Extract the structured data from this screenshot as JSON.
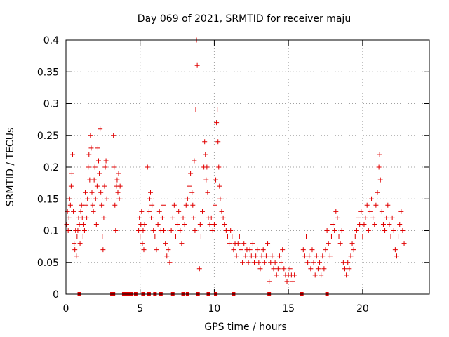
{
  "chart_data": {
    "type": "scatter",
    "title": "Day 069 of 2021, SRMTID for receiver maju",
    "xlabel": "GPS time / hours",
    "ylabel": "SRMTID / TECUs",
    "xlim": [
      0,
      24.5
    ],
    "ylim": [
      0,
      0.4
    ],
    "xticks": [
      0,
      5,
      10,
      15,
      20
    ],
    "xtick_labels": [
      "0",
      "5",
      "10",
      "15",
      "20"
    ],
    "yticks": [
      0,
      0.05,
      0.1,
      0.15,
      0.2,
      0.25,
      0.3,
      0.35,
      0.4
    ],
    "ytick_labels": [
      "0",
      "0.05",
      "0.1",
      "0.15",
      "0.2",
      "0.25",
      "0.3",
      "0.35",
      "0.4"
    ],
    "grid": true,
    "marker": "+",
    "series_color": "#e00000",
    "gap_markers_x": [
      0.9,
      3.1,
      3.2,
      3.9,
      4.1,
      4.2,
      4.4,
      4.7,
      5.2,
      5.6,
      6.0,
      6.4,
      7.2,
      7.9,
      8.2,
      8.9,
      9.6,
      10.1,
      11.3,
      13.7,
      15.9,
      17.6
    ],
    "points": [
      [
        0.05,
        0.11
      ],
      [
        0.1,
        0.13
      ],
      [
        0.15,
        0.1
      ],
      [
        0.2,
        0.12
      ],
      [
        0.25,
        0.15
      ],
      [
        0.3,
        0.14
      ],
      [
        0.35,
        0.17
      ],
      [
        0.4,
        0.19
      ],
      [
        0.45,
        0.22
      ],
      [
        0.5,
        0.13
      ],
      [
        0.55,
        0.08
      ],
      [
        0.6,
        0.07
      ],
      [
        0.65,
        0.1
      ],
      [
        0.7,
        0.06
      ],
      [
        0.75,
        0.09
      ],
      [
        0.8,
        0.1
      ],
      [
        0.85,
        0.12
      ],
      [
        0.9,
        0.11
      ],
      [
        0.95,
        0.08
      ],
      [
        1.0,
        0.13
      ],
      [
        1.05,
        0.14
      ],
      [
        1.1,
        0.12
      ],
      [
        1.15,
        0.09
      ],
      [
        1.2,
        0.11
      ],
      [
        1.25,
        0.1
      ],
      [
        1.3,
        0.16
      ],
      [
        1.35,
        0.14
      ],
      [
        1.4,
        0.12
      ],
      [
        1.45,
        0.15
      ],
      [
        1.5,
        0.2
      ],
      [
        1.55,
        0.22
      ],
      [
        1.6,
        0.18
      ],
      [
        1.65,
        0.25
      ],
      [
        1.7,
        0.23
      ],
      [
        1.75,
        0.16
      ],
      [
        1.8,
        0.14
      ],
      [
        1.85,
        0.13
      ],
      [
        1.9,
        0.18
      ],
      [
        1.95,
        0.2
      ],
      [
        2.0,
        0.15
      ],
      [
        2.05,
        0.11
      ],
      [
        2.1,
        0.17
      ],
      [
        2.15,
        0.23
      ],
      [
        2.2,
        0.21
      ],
      [
        2.25,
        0.19
      ],
      [
        2.3,
        0.26
      ],
      [
        2.35,
        0.16
      ],
      [
        2.4,
        0.14
      ],
      [
        2.45,
        0.09
      ],
      [
        2.5,
        0.07
      ],
      [
        2.55,
        0.12
      ],
      [
        2.6,
        0.17
      ],
      [
        2.65,
        0.2
      ],
      [
        2.7,
        0.21
      ],
      [
        2.75,
        0.15
      ],
      [
        3.2,
        0.25
      ],
      [
        3.25,
        0.2
      ],
      [
        3.3,
        0.14
      ],
      [
        3.35,
        0.1
      ],
      [
        3.4,
        0.17
      ],
      [
        3.45,
        0.18
      ],
      [
        3.5,
        0.16
      ],
      [
        3.55,
        0.19
      ],
      [
        3.6,
        0.15
      ],
      [
        3.65,
        0.17
      ],
      [
        4.9,
        0.1
      ],
      [
        4.95,
        0.12
      ],
      [
        5.0,
        0.09
      ],
      [
        5.05,
        0.11
      ],
      [
        5.1,
        0.13
      ],
      [
        5.15,
        0.08
      ],
      [
        5.2,
        0.1
      ],
      [
        5.25,
        0.07
      ],
      [
        5.3,
        0.11
      ],
      [
        5.5,
        0.2
      ],
      [
        5.6,
        0.13
      ],
      [
        5.65,
        0.15
      ],
      [
        5.7,
        0.16
      ],
      [
        5.75,
        0.12
      ],
      [
        5.8,
        0.14
      ],
      [
        5.9,
        0.1
      ],
      [
        6.0,
        0.09
      ],
      [
        6.1,
        0.07
      ],
      [
        6.2,
        0.11
      ],
      [
        6.3,
        0.13
      ],
      [
        6.4,
        0.1
      ],
      [
        6.5,
        0.12
      ],
      [
        6.55,
        0.14
      ],
      [
        6.6,
        0.1
      ],
      [
        6.7,
        0.08
      ],
      [
        6.8,
        0.06
      ],
      [
        6.9,
        0.07
      ],
      [
        7.0,
        0.05
      ],
      [
        7.1,
        0.1
      ],
      [
        7.2,
        0.12
      ],
      [
        7.3,
        0.14
      ],
      [
        7.4,
        0.09
      ],
      [
        7.5,
        0.11
      ],
      [
        7.6,
        0.13
      ],
      [
        7.7,
        0.1
      ],
      [
        7.8,
        0.08
      ],
      [
        7.9,
        0.12
      ],
      [
        8.0,
        0.11
      ],
      [
        8.1,
        0.14
      ],
      [
        8.2,
        0.15
      ],
      [
        8.3,
        0.17
      ],
      [
        8.4,
        0.19
      ],
      [
        8.5,
        0.16
      ],
      [
        8.55,
        0.14
      ],
      [
        8.6,
        0.12
      ],
      [
        8.65,
        0.21
      ],
      [
        8.7,
        0.1
      ],
      [
        8.75,
        0.29
      ],
      [
        8.8,
        0.4
      ],
      [
        8.85,
        0.36
      ],
      [
        9.0,
        0.04
      ],
      [
        9.05,
        0.11
      ],
      [
        9.1,
        0.09
      ],
      [
        9.2,
        0.13
      ],
      [
        9.3,
        0.2
      ],
      [
        9.35,
        0.24
      ],
      [
        9.4,
        0.22
      ],
      [
        9.45,
        0.18
      ],
      [
        9.5,
        0.2
      ],
      [
        9.55,
        0.16
      ],
      [
        9.6,
        0.12
      ],
      [
        9.7,
        0.11
      ],
      [
        9.8,
        0.12
      ],
      [
        9.9,
        0.1
      ],
      [
        10.0,
        0.11
      ],
      [
        10.05,
        0.14
      ],
      [
        10.1,
        0.18
      ],
      [
        10.15,
        0.27
      ],
      [
        10.2,
        0.29
      ],
      [
        10.25,
        0.24
      ],
      [
        10.3,
        0.2
      ],
      [
        10.35,
        0.17
      ],
      [
        10.4,
        0.15
      ],
      [
        10.5,
        0.13
      ],
      [
        10.6,
        0.12
      ],
      [
        10.7,
        0.11
      ],
      [
        10.8,
        0.1
      ],
      [
        10.9,
        0.09
      ],
      [
        11.0,
        0.08
      ],
      [
        11.1,
        0.1
      ],
      [
        11.2,
        0.09
      ],
      [
        11.3,
        0.07
      ],
      [
        11.4,
        0.08
      ],
      [
        11.5,
        0.06
      ],
      [
        11.6,
        0.08
      ],
      [
        11.7,
        0.09
      ],
      [
        11.8,
        0.07
      ],
      [
        11.9,
        0.05
      ],
      [
        12.0,
        0.08
      ],
      [
        12.1,
        0.06
      ],
      [
        12.2,
        0.07
      ],
      [
        12.3,
        0.05
      ],
      [
        12.4,
        0.07
      ],
      [
        12.5,
        0.06
      ],
      [
        12.6,
        0.08
      ],
      [
        12.7,
        0.05
      ],
      [
        12.8,
        0.06
      ],
      [
        12.9,
        0.07
      ],
      [
        13.0,
        0.05
      ],
      [
        13.1,
        0.04
      ],
      [
        13.2,
        0.06
      ],
      [
        13.3,
        0.07
      ],
      [
        13.4,
        0.05
      ],
      [
        13.5,
        0.06
      ],
      [
        13.6,
        0.08
      ],
      [
        13.7,
        0.02
      ],
      [
        13.8,
        0.05
      ],
      [
        13.9,
        0.06
      ],
      [
        14.0,
        0.04
      ],
      [
        14.1,
        0.05
      ],
      [
        14.2,
        0.03
      ],
      [
        14.3,
        0.04
      ],
      [
        14.4,
        0.06
      ],
      [
        14.5,
        0.05
      ],
      [
        14.6,
        0.07
      ],
      [
        14.7,
        0.04
      ],
      [
        14.8,
        0.03
      ],
      [
        14.9,
        0.02
      ],
      [
        15.0,
        0.03
      ],
      [
        15.1,
        0.04
      ],
      [
        15.2,
        0.03
      ],
      [
        15.3,
        0.02
      ],
      [
        15.4,
        0.03
      ],
      [
        16.0,
        0.07
      ],
      [
        16.1,
        0.06
      ],
      [
        16.2,
        0.09
      ],
      [
        16.3,
        0.05
      ],
      [
        16.4,
        0.06
      ],
      [
        16.5,
        0.04
      ],
      [
        16.6,
        0.07
      ],
      [
        16.7,
        0.05
      ],
      [
        16.8,
        0.03
      ],
      [
        16.9,
        0.06
      ],
      [
        17.0,
        0.04
      ],
      [
        17.1,
        0.05
      ],
      [
        17.2,
        0.03
      ],
      [
        17.3,
        0.06
      ],
      [
        17.4,
        0.04
      ],
      [
        17.5,
        0.07
      ],
      [
        17.6,
        0.1
      ],
      [
        17.7,
        0.08
      ],
      [
        17.8,
        0.06
      ],
      [
        17.9,
        0.09
      ],
      [
        18.0,
        0.11
      ],
      [
        18.1,
        0.1
      ],
      [
        18.2,
        0.13
      ],
      [
        18.3,
        0.12
      ],
      [
        18.4,
        0.09
      ],
      [
        18.5,
        0.08
      ],
      [
        18.6,
        0.1
      ],
      [
        18.7,
        0.05
      ],
      [
        18.8,
        0.04
      ],
      [
        18.9,
        0.03
      ],
      [
        19.0,
        0.05
      ],
      [
        19.1,
        0.04
      ],
      [
        19.2,
        0.06
      ],
      [
        19.3,
        0.08
      ],
      [
        19.4,
        0.07
      ],
      [
        19.5,
        0.09
      ],
      [
        19.6,
        0.1
      ],
      [
        19.7,
        0.12
      ],
      [
        19.8,
        0.11
      ],
      [
        19.9,
        0.13
      ],
      [
        20.0,
        0.09
      ],
      [
        20.1,
        0.11
      ],
      [
        20.2,
        0.12
      ],
      [
        20.3,
        0.14
      ],
      [
        20.4,
        0.1
      ],
      [
        20.5,
        0.13
      ],
      [
        20.6,
        0.15
      ],
      [
        20.7,
        0.12
      ],
      [
        20.8,
        0.11
      ],
      [
        20.9,
        0.14
      ],
      [
        21.0,
        0.16
      ],
      [
        21.1,
        0.2
      ],
      [
        21.15,
        0.22
      ],
      [
        21.2,
        0.18
      ],
      [
        21.3,
        0.13
      ],
      [
        21.4,
        0.11
      ],
      [
        21.5,
        0.1
      ],
      [
        21.6,
        0.12
      ],
      [
        21.7,
        0.14
      ],
      [
        21.8,
        0.11
      ],
      [
        21.9,
        0.09
      ],
      [
        22.0,
        0.12
      ],
      [
        22.1,
        0.1
      ],
      [
        22.2,
        0.07
      ],
      [
        22.3,
        0.06
      ],
      [
        22.4,
        0.09
      ],
      [
        22.5,
        0.11
      ],
      [
        22.6,
        0.13
      ],
      [
        22.7,
        0.1
      ],
      [
        22.8,
        0.08
      ]
    ]
  }
}
